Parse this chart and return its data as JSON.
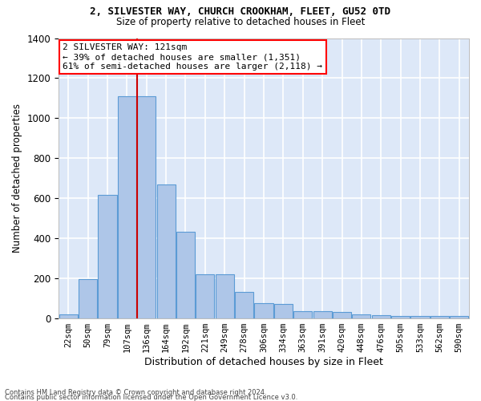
{
  "title_line1": "2, SILVESTER WAY, CHURCH CROOKHAM, FLEET, GU52 0TD",
  "title_line2": "Size of property relative to detached houses in Fleet",
  "xlabel": "Distribution of detached houses by size in Fleet",
  "ylabel": "Number of detached properties",
  "categories": [
    "22sqm",
    "50sqm",
    "79sqm",
    "107sqm",
    "136sqm",
    "164sqm",
    "192sqm",
    "221sqm",
    "249sqm",
    "278sqm",
    "306sqm",
    "334sqm",
    "363sqm",
    "391sqm",
    "420sqm",
    "448sqm",
    "476sqm",
    "505sqm",
    "533sqm",
    "562sqm",
    "590sqm"
  ],
  "values": [
    20,
    195,
    615,
    1110,
    1110,
    670,
    430,
    220,
    220,
    130,
    75,
    70,
    35,
    35,
    30,
    20,
    15,
    10,
    10,
    10,
    10
  ],
  "bar_color": "#aec6e8",
  "bar_edge_color": "#5b9bd5",
  "bg_color": "#dde8f8",
  "grid_color": "#ffffff",
  "annotation_line1": "2 SILVESTER WAY: 121sqm",
  "annotation_line2": "← 39% of detached houses are smaller (1,351)",
  "annotation_line3": "61% of semi-detached houses are larger (2,118) →",
  "vline_color": "#cc0000",
  "vline_bin_index": 3.5,
  "footer_line1": "Contains HM Land Registry data © Crown copyright and database right 2024.",
  "footer_line2": "Contains public sector information licensed under the Open Government Licence v3.0.",
  "ylim": [
    0,
    1400
  ],
  "yticks": [
    0,
    200,
    400,
    600,
    800,
    1000,
    1200,
    1400
  ]
}
